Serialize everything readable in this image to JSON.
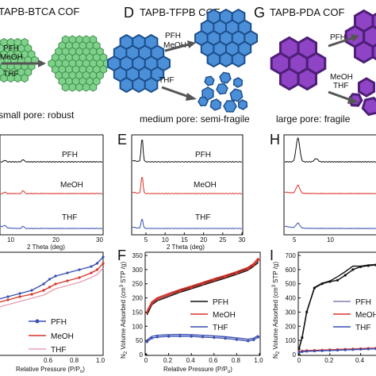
{
  "top_panels": [
    {
      "letter": "",
      "title": "TAPB-BTCA COF",
      "solvents_label": "PFH\nMeOH",
      "thf_label": "THF",
      "caption": "small pore: robust",
      "color": "#7fd08a",
      "stroke": "#3a8f48"
    },
    {
      "letter": "D",
      "title": "TAPB-TFPB COF",
      "solvents_label": "PFH\nMeOH",
      "thf_label": "THF",
      "caption": "medium pore: semi-fragile",
      "color": "#4a8fd8",
      "stroke": "#1d4f8c"
    },
    {
      "letter": "G",
      "title": "TAPB-PDA COF",
      "solvents_label": "PFH",
      "thf_label": "MeOH\nTHF",
      "caption": "large pore: fragile",
      "color": "#8e44c4",
      "stroke": "#4e1e78"
    }
  ],
  "xrd_panels": [
    {
      "letter": "",
      "xlabel": "2 Theta (deg)",
      "xticks": [
        "10",
        "20",
        "30"
      ],
      "series_labels": [
        "PFH",
        "MeOH",
        "THF"
      ]
    },
    {
      "letter": "E",
      "xlabel": "2 Theta (deg)",
      "xticks": [
        "5",
        "10",
        "15",
        "20",
        "25",
        "30"
      ],
      "series_labels": [
        "PFH",
        "MeOH",
        "THF"
      ]
    },
    {
      "letter": "H",
      "xlabel": "",
      "xticks": [
        "5",
        "10"
      ],
      "series_labels": []
    }
  ],
  "iso_panels": [
    {
      "letter": "",
      "xlabel": "Relative Pressure (P/P",
      "xlabel_sub": "o",
      "xticks": [
        "0.6",
        "0.8",
        "1.0"
      ],
      "legend": [
        "PFH",
        "MeOH",
        "THF"
      ]
    },
    {
      "letter": "F",
      "xlabel": "Relative Pressure (P/P",
      "xlabel_sub": "o",
      "ylabel": "N",
      "ylabel_sub": "2",
      "ylabel_rest": " Volume Adsorbed (cm",
      "ylabel_sup": "3",
      "ylabel_end": " STP /g)",
      "xticks": [
        "0",
        "0.2",
        "0.4",
        "0.6",
        "0.8",
        "1.0"
      ],
      "yticks": [
        "0",
        "50",
        "100",
        "150",
        "200",
        "250",
        "300",
        "350"
      ],
      "legend": [
        "PFH",
        "MeOH",
        "THF"
      ]
    },
    {
      "letter": "I",
      "xlabel": "",
      "ylabel": "N",
      "ylabel_sub": "2",
      "ylabel_rest": " Volume Adsorbed (cm",
      "ylabel_sup": "3",
      "ylabel_end": " STP /g)",
      "xticks": [
        "0",
        "0.2",
        "0.4"
      ],
      "yticks": [
        "0",
        "100",
        "200",
        "300",
        "400",
        "500",
        "600",
        "700"
      ],
      "legend": [
        "PFH",
        "MeOH",
        "THF"
      ]
    }
  ],
  "series_colors": {
    "PFH": "#111111",
    "MeOH": "#d9332b",
    "THF": "#3a4fb0"
  },
  "chart_data": [
    {
      "type": "line",
      "panel": "E",
      "xlabel": "2 Theta (deg)",
      "xlim": [
        0,
        30
      ],
      "series": [
        {
          "name": "PFH",
          "x": [
            1.5,
            2.8,
            3.4,
            4.0,
            4.6,
            5.2,
            7,
            10,
            15,
            20,
            25,
            30
          ],
          "values": [
            1.0,
            1.2,
            4.5,
            8.0,
            3.0,
            1.5,
            1.2,
            1.1,
            1.0,
            1.0,
            1.0,
            0.9
          ]
        },
        {
          "name": "MeOH",
          "x": [
            1.5,
            2.8,
            3.4,
            4.0,
            4.6,
            5.2,
            7,
            10,
            15,
            20,
            25,
            30
          ],
          "values": [
            1.0,
            1.1,
            3.2,
            5.5,
            2.5,
            1.5,
            1.2,
            1.1,
            1.0,
            1.0,
            1.0,
            0.9
          ]
        },
        {
          "name": "THF",
          "x": [
            1.5,
            2.8,
            3.4,
            4.0,
            4.6,
            5.2,
            7,
            10,
            15,
            20,
            25,
            30
          ],
          "values": [
            1.0,
            1.2,
            2.2,
            3.0,
            1.9,
            1.4,
            1.2,
            1.1,
            1.0,
            1.0,
            1.0,
            0.9
          ]
        }
      ]
    },
    {
      "type": "line",
      "panel": "F",
      "xlabel": "Relative Pressure (P/Po)",
      "ylabel": "N2 Volume Adsorbed (cm3 STP /g)",
      "xlim": [
        0,
        1.0
      ],
      "ylim": [
        0,
        350
      ],
      "series": [
        {
          "name": "PFH",
          "x": [
            0.01,
            0.05,
            0.1,
            0.2,
            0.3,
            0.4,
            0.5,
            0.6,
            0.7,
            0.8,
            0.9,
            0.95,
            0.99
          ],
          "values": [
            140,
            175,
            190,
            205,
            220,
            232,
            245,
            258,
            270,
            283,
            298,
            312,
            325
          ]
        },
        {
          "name": "MeOH",
          "x": [
            0.01,
            0.05,
            0.1,
            0.2,
            0.3,
            0.4,
            0.5,
            0.6,
            0.7,
            0.8,
            0.9,
            0.95,
            0.99
          ],
          "values": [
            148,
            180,
            195,
            210,
            224,
            236,
            249,
            262,
            274,
            287,
            302,
            316,
            335
          ]
        },
        {
          "name": "THF",
          "x": [
            0.01,
            0.05,
            0.1,
            0.2,
            0.3,
            0.4,
            0.5,
            0.6,
            0.7,
            0.8,
            0.9,
            0.95,
            0.99
          ],
          "values": [
            45,
            58,
            62,
            64,
            65,
            64,
            62,
            60,
            57,
            53,
            48,
            52,
            62
          ]
        }
      ]
    },
    {
      "type": "line",
      "panel": "I",
      "ylabel": "N2 Volume Adsorbed (cm3 STP /g)",
      "xlim": [
        0,
        0.5
      ],
      "ylim": [
        0,
        700
      ],
      "series": [
        {
          "name": "PFH",
          "x": [
            0.0,
            0.02,
            0.05,
            0.1,
            0.15,
            0.2,
            0.25,
            0.3,
            0.35,
            0.4,
            0.45,
            0.5
          ],
          "values": [
            40,
            120,
            300,
            470,
            500,
            515,
            525,
            560,
            600,
            620,
            628,
            632
          ]
        },
        {
          "name": "MeOH",
          "x": [
            0.0,
            0.02,
            0.05,
            0.1,
            0.15,
            0.2,
            0.25,
            0.3,
            0.35,
            0.4,
            0.45,
            0.5
          ],
          "values": [
            20,
            25,
            28,
            30,
            32,
            34,
            36,
            38,
            40,
            42,
            44,
            46
          ]
        },
        {
          "name": "THF",
          "x": [
            0.0,
            0.02,
            0.05,
            0.1,
            0.15,
            0.2,
            0.25,
            0.3,
            0.35,
            0.4,
            0.45,
            0.5
          ],
          "values": [
            15,
            20,
            23,
            25,
            27,
            29,
            31,
            33,
            35,
            37,
            39,
            41
          ]
        }
      ]
    }
  ]
}
